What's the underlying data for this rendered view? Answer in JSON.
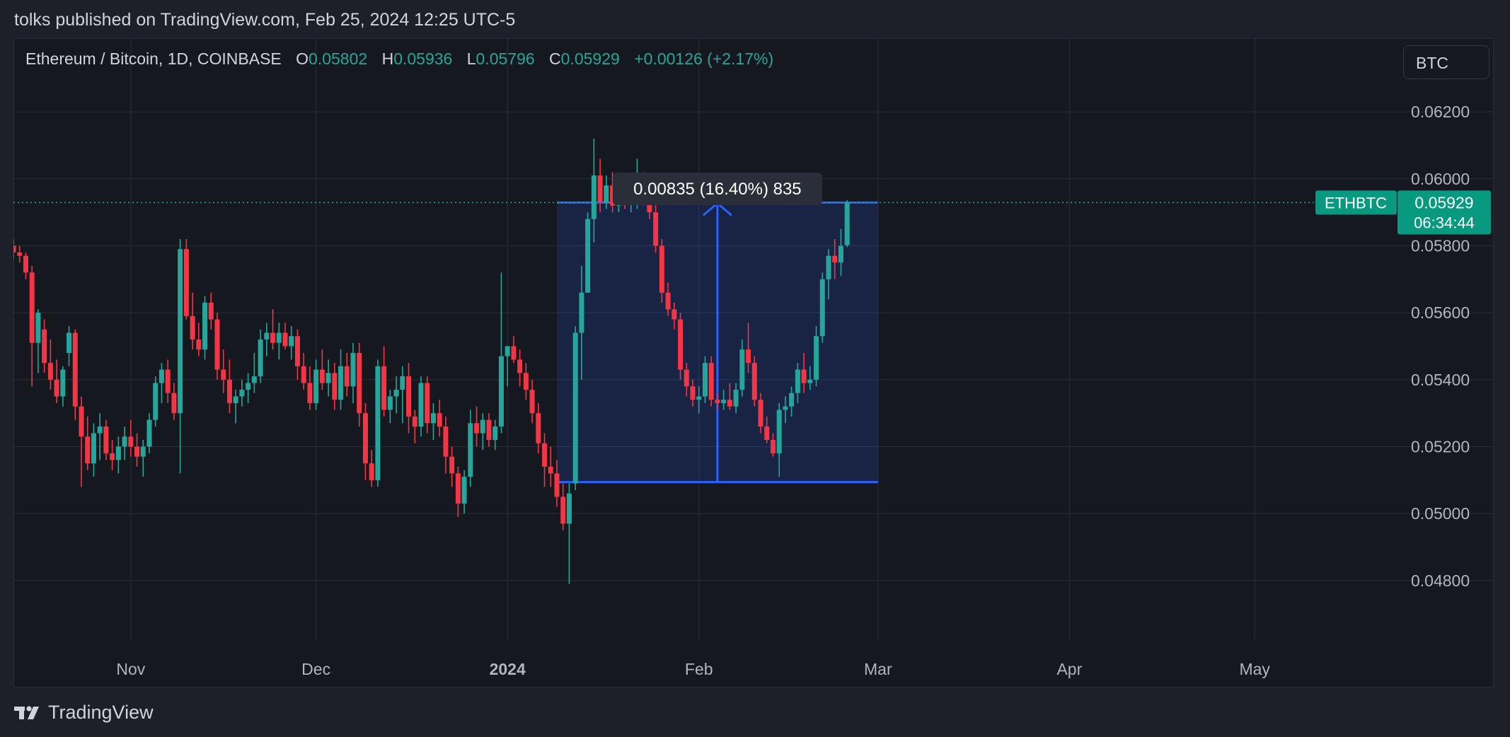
{
  "header": {
    "published_text": "tolks published on TradingView.com, Feb 25, 2024 12:25 UTC-5"
  },
  "legend": {
    "symbol": "Ethereum / Bitcoin, 1D, COINBASE",
    "open_label": "O",
    "open": "0.05802",
    "high_label": "H",
    "high": "0.05936",
    "low_label": "L",
    "low": "0.05796",
    "close_label": "C",
    "close": "0.05929",
    "change": "+0.00126 (+2.17%)"
  },
  "currency_button": {
    "label": "BTC"
  },
  "footer": {
    "brand": "TradingView",
    "logo_icon": "tradingview-logo-icon"
  },
  "colors": {
    "background": "#161820",
    "grid": "#2a2e39",
    "up": "#26a69a",
    "down": "#f23645",
    "measure": "#2962ff",
    "badge": "#089981"
  },
  "chart_data": {
    "type": "candlestick",
    "symbol": "ETHBTC",
    "ylim": [
      0.0462,
      0.0642
    ],
    "x_range": [
      "2023-10-13",
      "2024-05-20"
    ],
    "y_ticks": [
      "0.06200",
      "0.06000",
      "0.05800",
      "0.05600",
      "0.05400",
      "0.05200",
      "0.05000",
      "0.04800"
    ],
    "x_ticks": [
      {
        "date": "2023-11-01",
        "label": "Nov",
        "bold": false
      },
      {
        "date": "2023-12-01",
        "label": "Dec",
        "bold": false
      },
      {
        "date": "2024-01-01",
        "label": "2024",
        "bold": true
      },
      {
        "date": "2024-02-01",
        "label": "Feb",
        "bold": false
      },
      {
        "date": "2024-03-01",
        "label": "Mar",
        "bold": false
      },
      {
        "date": "2024-04-01",
        "label": "Apr",
        "bold": false
      },
      {
        "date": "2024-05-01",
        "label": "May",
        "bold": false
      }
    ],
    "grid": true,
    "last_price": {
      "symbol_label": "ETHBTC",
      "price": "0.05929",
      "countdown": "06:34:44",
      "value": 0.05929
    },
    "measure": {
      "label": "0.00835 (16.40%) 835",
      "start_date": "2024-01-09",
      "end_date": "2024-03-01",
      "from_price": 0.05094,
      "to_price": 0.05929
    },
    "candles": [
      {
        "d": "2023-10-13",
        "o": 0.058,
        "h": 0.0582,
        "l": 0.0576,
        "c": 0.0578
      },
      {
        "d": "2023-10-14",
        "o": 0.0578,
        "h": 0.058,
        "l": 0.0575,
        "c": 0.0577
      },
      {
        "d": "2023-10-15",
        "o": 0.0577,
        "h": 0.0578,
        "l": 0.057,
        "c": 0.0572
      },
      {
        "d": "2023-10-16",
        "o": 0.0572,
        "h": 0.0574,
        "l": 0.0538,
        "c": 0.0551
      },
      {
        "d": "2023-10-17",
        "o": 0.0551,
        "h": 0.0561,
        "l": 0.0542,
        "c": 0.056
      },
      {
        "d": "2023-10-18",
        "o": 0.0555,
        "h": 0.0558,
        "l": 0.0542,
        "c": 0.0545
      },
      {
        "d": "2023-10-19",
        "o": 0.0545,
        "h": 0.0552,
        "l": 0.0537,
        "c": 0.054
      },
      {
        "d": "2023-10-20",
        "o": 0.054,
        "h": 0.0546,
        "l": 0.0533,
        "c": 0.0535
      },
      {
        "d": "2023-10-21",
        "o": 0.0535,
        "h": 0.0544,
        "l": 0.0532,
        "c": 0.0543
      },
      {
        "d": "2023-10-22",
        "o": 0.0548,
        "h": 0.0556,
        "l": 0.0544,
        "c": 0.0554
      },
      {
        "d": "2023-10-23",
        "o": 0.0554,
        "h": 0.0555,
        "l": 0.0528,
        "c": 0.0532
      },
      {
        "d": "2023-10-24",
        "o": 0.0532,
        "h": 0.0535,
        "l": 0.0508,
        "c": 0.0523
      },
      {
        "d": "2023-10-25",
        "o": 0.0523,
        "h": 0.0529,
        "l": 0.0513,
        "c": 0.0515
      },
      {
        "d": "2023-10-26",
        "o": 0.0515,
        "h": 0.0527,
        "l": 0.0511,
        "c": 0.0524
      },
      {
        "d": "2023-10-27",
        "o": 0.0524,
        "h": 0.053,
        "l": 0.0516,
        "c": 0.0526
      },
      {
        "d": "2023-10-28",
        "o": 0.0526,
        "h": 0.0528,
        "l": 0.0516,
        "c": 0.0518
      },
      {
        "d": "2023-10-29",
        "o": 0.0518,
        "h": 0.0522,
        "l": 0.0513,
        "c": 0.0516
      },
      {
        "d": "2023-10-30",
        "o": 0.0516,
        "h": 0.0523,
        "l": 0.0512,
        "c": 0.052
      },
      {
        "d": "2023-10-31",
        "o": 0.052,
        "h": 0.0526,
        "l": 0.0516,
        "c": 0.0523
      },
      {
        "d": "2023-11-01",
        "o": 0.0523,
        "h": 0.0528,
        "l": 0.0517,
        "c": 0.052
      },
      {
        "d": "2023-11-02",
        "o": 0.052,
        "h": 0.0524,
        "l": 0.0514,
        "c": 0.0517
      },
      {
        "d": "2023-11-03",
        "o": 0.0517,
        "h": 0.0522,
        "l": 0.0511,
        "c": 0.052
      },
      {
        "d": "2023-11-04",
        "o": 0.052,
        "h": 0.053,
        "l": 0.0518,
        "c": 0.0528
      },
      {
        "d": "2023-11-05",
        "o": 0.0528,
        "h": 0.0541,
        "l": 0.0526,
        "c": 0.0539
      },
      {
        "d": "2023-11-06",
        "o": 0.0539,
        "h": 0.0545,
        "l": 0.0533,
        "c": 0.0543
      },
      {
        "d": "2023-11-07",
        "o": 0.0543,
        "h": 0.0546,
        "l": 0.0533,
        "c": 0.0536
      },
      {
        "d": "2023-11-08",
        "o": 0.0536,
        "h": 0.0539,
        "l": 0.0528,
        "c": 0.053
      },
      {
        "d": "2023-11-09",
        "o": 0.053,
        "h": 0.0582,
        "l": 0.0512,
        "c": 0.0579
      },
      {
        "d": "2023-11-10",
        "o": 0.0579,
        "h": 0.0582,
        "l": 0.0558,
        "c": 0.0559
      },
      {
        "d": "2023-11-11",
        "o": 0.0559,
        "h": 0.0566,
        "l": 0.0549,
        "c": 0.0552
      },
      {
        "d": "2023-11-12",
        "o": 0.0552,
        "h": 0.0557,
        "l": 0.0547,
        "c": 0.0549
      },
      {
        "d": "2023-11-13",
        "o": 0.0549,
        "h": 0.0565,
        "l": 0.0546,
        "c": 0.0563
      },
      {
        "d": "2023-11-14",
        "o": 0.0563,
        "h": 0.0566,
        "l": 0.0555,
        "c": 0.0558
      },
      {
        "d": "2023-11-15",
        "o": 0.0558,
        "h": 0.056,
        "l": 0.054,
        "c": 0.0543
      },
      {
        "d": "2023-11-16",
        "o": 0.0543,
        "h": 0.0549,
        "l": 0.0536,
        "c": 0.054
      },
      {
        "d": "2023-11-17",
        "o": 0.054,
        "h": 0.0546,
        "l": 0.053,
        "c": 0.0533
      },
      {
        "d": "2023-11-18",
        "o": 0.0533,
        "h": 0.0537,
        "l": 0.0527,
        "c": 0.0535
      },
      {
        "d": "2023-11-19",
        "o": 0.0535,
        "h": 0.054,
        "l": 0.0532,
        "c": 0.0537
      },
      {
        "d": "2023-11-20",
        "o": 0.0537,
        "h": 0.0542,
        "l": 0.0533,
        "c": 0.0539
      },
      {
        "d": "2023-11-21",
        "o": 0.0539,
        "h": 0.0548,
        "l": 0.0536,
        "c": 0.0541
      },
      {
        "d": "2023-11-22",
        "o": 0.0541,
        "h": 0.0555,
        "l": 0.0539,
        "c": 0.0552
      },
      {
        "d": "2023-11-23",
        "o": 0.0552,
        "h": 0.0557,
        "l": 0.0547,
        "c": 0.0554
      },
      {
        "d": "2023-11-24",
        "o": 0.0554,
        "h": 0.0561,
        "l": 0.0549,
        "c": 0.0551
      },
      {
        "d": "2023-11-25",
        "o": 0.0551,
        "h": 0.0557,
        "l": 0.0546,
        "c": 0.0554
      },
      {
        "d": "2023-11-26",
        "o": 0.0554,
        "h": 0.0557,
        "l": 0.0549,
        "c": 0.055
      },
      {
        "d": "2023-11-27",
        "o": 0.055,
        "h": 0.0556,
        "l": 0.0546,
        "c": 0.0553
      },
      {
        "d": "2023-11-28",
        "o": 0.0553,
        "h": 0.0555,
        "l": 0.054,
        "c": 0.0544
      },
      {
        "d": "2023-11-29",
        "o": 0.0544,
        "h": 0.0548,
        "l": 0.0537,
        "c": 0.0539
      },
      {
        "d": "2023-11-30",
        "o": 0.0539,
        "h": 0.0544,
        "l": 0.0531,
        "c": 0.0533
      },
      {
        "d": "2023-12-01",
        "o": 0.0533,
        "h": 0.0546,
        "l": 0.0531,
        "c": 0.0543
      },
      {
        "d": "2023-12-02",
        "o": 0.0543,
        "h": 0.0549,
        "l": 0.0537,
        "c": 0.0539
      },
      {
        "d": "2023-12-03",
        "o": 0.0539,
        "h": 0.0546,
        "l": 0.0535,
        "c": 0.0542
      },
      {
        "d": "2023-12-04",
        "o": 0.0542,
        "h": 0.0545,
        "l": 0.0531,
        "c": 0.0534
      },
      {
        "d": "2023-12-05",
        "o": 0.0534,
        "h": 0.0549,
        "l": 0.0531,
        "c": 0.0544
      },
      {
        "d": "2023-12-06",
        "o": 0.0544,
        "h": 0.0548,
        "l": 0.0535,
        "c": 0.0538
      },
      {
        "d": "2023-12-07",
        "o": 0.0538,
        "h": 0.0551,
        "l": 0.0533,
        "c": 0.0548
      },
      {
        "d": "2023-12-08",
        "o": 0.0548,
        "h": 0.0551,
        "l": 0.0526,
        "c": 0.053
      },
      {
        "d": "2023-12-09",
        "o": 0.053,
        "h": 0.0533,
        "l": 0.051,
        "c": 0.0515
      },
      {
        "d": "2023-12-10",
        "o": 0.0515,
        "h": 0.0519,
        "l": 0.0508,
        "c": 0.051
      },
      {
        "d": "2023-12-11",
        "o": 0.051,
        "h": 0.0546,
        "l": 0.0508,
        "c": 0.0544
      },
      {
        "d": "2023-12-12",
        "o": 0.0544,
        "h": 0.055,
        "l": 0.0529,
        "c": 0.0531
      },
      {
        "d": "2023-12-13",
        "o": 0.0531,
        "h": 0.0537,
        "l": 0.0527,
        "c": 0.0535
      },
      {
        "d": "2023-12-14",
        "o": 0.0535,
        "h": 0.0541,
        "l": 0.053,
        "c": 0.0537
      },
      {
        "d": "2023-12-15",
        "o": 0.0537,
        "h": 0.0544,
        "l": 0.0527,
        "c": 0.0541
      },
      {
        "d": "2023-12-16",
        "o": 0.0541,
        "h": 0.0545,
        "l": 0.0524,
        "c": 0.0529
      },
      {
        "d": "2023-12-17",
        "o": 0.0529,
        "h": 0.0531,
        "l": 0.0521,
        "c": 0.0526
      },
      {
        "d": "2023-12-18",
        "o": 0.0526,
        "h": 0.0541,
        "l": 0.0523,
        "c": 0.0539
      },
      {
        "d": "2023-12-19",
        "o": 0.0539,
        "h": 0.0541,
        "l": 0.0524,
        "c": 0.0527
      },
      {
        "d": "2023-12-20",
        "o": 0.0527,
        "h": 0.0533,
        "l": 0.0522,
        "c": 0.053
      },
      {
        "d": "2023-12-21",
        "o": 0.053,
        "h": 0.0534,
        "l": 0.0523,
        "c": 0.0526
      },
      {
        "d": "2023-12-22",
        "o": 0.0526,
        "h": 0.0529,
        "l": 0.0512,
        "c": 0.0517
      },
      {
        "d": "2023-12-23",
        "o": 0.0517,
        "h": 0.052,
        "l": 0.0508,
        "c": 0.0512
      },
      {
        "d": "2023-12-24",
        "o": 0.0512,
        "h": 0.0514,
        "l": 0.0499,
        "c": 0.0503
      },
      {
        "d": "2023-12-25",
        "o": 0.0503,
        "h": 0.0513,
        "l": 0.05,
        "c": 0.0511
      },
      {
        "d": "2023-12-26",
        "o": 0.0511,
        "h": 0.0531,
        "l": 0.0508,
        "c": 0.0527
      },
      {
        "d": "2023-12-27",
        "o": 0.0527,
        "h": 0.0532,
        "l": 0.052,
        "c": 0.0524
      },
      {
        "d": "2023-12-28",
        "o": 0.0524,
        "h": 0.053,
        "l": 0.0519,
        "c": 0.0528
      },
      {
        "d": "2023-12-29",
        "o": 0.0528,
        "h": 0.053,
        "l": 0.052,
        "c": 0.0522
      },
      {
        "d": "2023-12-30",
        "o": 0.0522,
        "h": 0.0528,
        "l": 0.0519,
        "c": 0.0526
      },
      {
        "d": "2023-12-31",
        "o": 0.0526,
        "h": 0.0572,
        "l": 0.0524,
        "c": 0.0547
      },
      {
        "d": "2024-01-01",
        "o": 0.0547,
        "h": 0.055,
        "l": 0.0538,
        "c": 0.055
      },
      {
        "d": "2024-01-02",
        "o": 0.055,
        "h": 0.0553,
        "l": 0.0545,
        "c": 0.0546
      },
      {
        "d": "2024-01-03",
        "o": 0.0546,
        "h": 0.0549,
        "l": 0.0538,
        "c": 0.0542
      },
      {
        "d": "2024-01-04",
        "o": 0.0542,
        "h": 0.0545,
        "l": 0.0534,
        "c": 0.0537
      },
      {
        "d": "2024-01-05",
        "o": 0.0537,
        "h": 0.054,
        "l": 0.0527,
        "c": 0.053
      },
      {
        "d": "2024-01-06",
        "o": 0.053,
        "h": 0.0533,
        "l": 0.0518,
        "c": 0.0521
      },
      {
        "d": "2024-01-07",
        "o": 0.0521,
        "h": 0.0524,
        "l": 0.0508,
        "c": 0.0514
      },
      {
        "d": "2024-01-08",
        "o": 0.0514,
        "h": 0.052,
        "l": 0.0508,
        "c": 0.0512
      },
      {
        "d": "2024-01-09",
        "o": 0.0512,
        "h": 0.0516,
        "l": 0.0502,
        "c": 0.0505
      },
      {
        "d": "2024-01-10",
        "o": 0.0505,
        "h": 0.0509,
        "l": 0.0495,
        "c": 0.0497
      },
      {
        "d": "2024-01-11",
        "o": 0.0497,
        "h": 0.0509,
        "l": 0.0479,
        "c": 0.0506
      },
      {
        "d": "2024-01-12",
        "o": 0.0509,
        "h": 0.0556,
        "l": 0.0507,
        "c": 0.0554
      },
      {
        "d": "2024-01-13",
        "o": 0.0554,
        "h": 0.0574,
        "l": 0.054,
        "c": 0.0566
      },
      {
        "d": "2024-01-14",
        "o": 0.0566,
        "h": 0.059,
        "l": 0.0566,
        "c": 0.0588
      },
      {
        "d": "2024-01-15",
        "o": 0.0588,
        "h": 0.0612,
        "l": 0.0581,
        "c": 0.0601
      },
      {
        "d": "2024-01-16",
        "o": 0.0601,
        "h": 0.0606,
        "l": 0.059,
        "c": 0.0593
      },
      {
        "d": "2024-01-17",
        "o": 0.0593,
        "h": 0.0601,
        "l": 0.0591,
        "c": 0.0598
      },
      {
        "d": "2024-01-18",
        "o": 0.0598,
        "h": 0.0602,
        "l": 0.059,
        "c": 0.0592
      },
      {
        "d": "2024-01-19",
        "o": 0.0592,
        "h": 0.06,
        "l": 0.059,
        "c": 0.0597
      },
      {
        "d": "2024-01-20",
        "o": 0.0597,
        "h": 0.0601,
        "l": 0.0591,
        "c": 0.0593
      },
      {
        "d": "2024-01-21",
        "o": 0.0593,
        "h": 0.06,
        "l": 0.059,
        "c": 0.0594
      },
      {
        "d": "2024-01-22",
        "o": 0.0594,
        "h": 0.0606,
        "l": 0.0591,
        "c": 0.06
      },
      {
        "d": "2024-01-23",
        "o": 0.06,
        "h": 0.0602,
        "l": 0.0592,
        "c": 0.0593
      },
      {
        "d": "2024-01-24",
        "o": 0.0593,
        "h": 0.0596,
        "l": 0.0588,
        "c": 0.059
      },
      {
        "d": "2024-01-25",
        "o": 0.059,
        "h": 0.0593,
        "l": 0.0578,
        "c": 0.058
      },
      {
        "d": "2024-01-26",
        "o": 0.058,
        "h": 0.0582,
        "l": 0.0563,
        "c": 0.0566
      },
      {
        "d": "2024-01-27",
        "o": 0.0566,
        "h": 0.0569,
        "l": 0.0559,
        "c": 0.0561
      },
      {
        "d": "2024-01-28",
        "o": 0.0561,
        "h": 0.0563,
        "l": 0.0555,
        "c": 0.0558
      },
      {
        "d": "2024-01-29",
        "o": 0.0558,
        "h": 0.056,
        "l": 0.054,
        "c": 0.0543
      },
      {
        "d": "2024-01-30",
        "o": 0.0543,
        "h": 0.0545,
        "l": 0.0535,
        "c": 0.0538
      },
      {
        "d": "2024-01-31",
        "o": 0.0538,
        "h": 0.054,
        "l": 0.0532,
        "c": 0.0534
      },
      {
        "d": "2024-02-01",
        "o": 0.0534,
        "h": 0.0538,
        "l": 0.053,
        "c": 0.0535
      },
      {
        "d": "2024-02-02",
        "o": 0.0535,
        "h": 0.0547,
        "l": 0.0533,
        "c": 0.0545
      },
      {
        "d": "2024-02-03",
        "o": 0.0545,
        "h": 0.0547,
        "l": 0.0532,
        "c": 0.0534
      },
      {
        "d": "2024-02-04",
        "o": 0.0534,
        "h": 0.0536,
        "l": 0.0531,
        "c": 0.0533
      },
      {
        "d": "2024-02-05",
        "o": 0.0533,
        "h": 0.0537,
        "l": 0.0531,
        "c": 0.0534
      },
      {
        "d": "2024-02-06",
        "o": 0.0534,
        "h": 0.0539,
        "l": 0.0531,
        "c": 0.0532
      },
      {
        "d": "2024-02-07",
        "o": 0.0532,
        "h": 0.0539,
        "l": 0.053,
        "c": 0.0537
      },
      {
        "d": "2024-02-08",
        "o": 0.0537,
        "h": 0.0552,
        "l": 0.0535,
        "c": 0.0549
      },
      {
        "d": "2024-02-09",
        "o": 0.0549,
        "h": 0.0557,
        "l": 0.0542,
        "c": 0.0545
      },
      {
        "d": "2024-02-10",
        "o": 0.0545,
        "h": 0.0547,
        "l": 0.0532,
        "c": 0.0534
      },
      {
        "d": "2024-02-11",
        "o": 0.0534,
        "h": 0.0536,
        "l": 0.0524,
        "c": 0.0526
      },
      {
        "d": "2024-02-12",
        "o": 0.0526,
        "h": 0.0529,
        "l": 0.0521,
        "c": 0.0522
      },
      {
        "d": "2024-02-13",
        "o": 0.0522,
        "h": 0.0524,
        "l": 0.0517,
        "c": 0.0518
      },
      {
        "d": "2024-02-14",
        "o": 0.0518,
        "h": 0.0533,
        "l": 0.0511,
        "c": 0.0531
      },
      {
        "d": "2024-02-15",
        "o": 0.0531,
        "h": 0.0535,
        "l": 0.0527,
        "c": 0.0532
      },
      {
        "d": "2024-02-16",
        "o": 0.0532,
        "h": 0.0538,
        "l": 0.0529,
        "c": 0.0536
      },
      {
        "d": "2024-02-17",
        "o": 0.0536,
        "h": 0.0545,
        "l": 0.0533,
        "c": 0.0543
      },
      {
        "d": "2024-02-18",
        "o": 0.0543,
        "h": 0.0548,
        "l": 0.0536,
        "c": 0.0539
      },
      {
        "d": "2024-02-19",
        "o": 0.0539,
        "h": 0.0544,
        "l": 0.0537,
        "c": 0.054
      },
      {
        "d": "2024-02-20",
        "o": 0.054,
        "h": 0.0556,
        "l": 0.0538,
        "c": 0.0553
      },
      {
        "d": "2024-02-21",
        "o": 0.0553,
        "h": 0.0572,
        "l": 0.0551,
        "c": 0.057
      },
      {
        "d": "2024-02-22",
        "o": 0.057,
        "h": 0.0579,
        "l": 0.0564,
        "c": 0.0577
      },
      {
        "d": "2024-02-23",
        "o": 0.0577,
        "h": 0.0582,
        "l": 0.057,
        "c": 0.0575
      },
      {
        "d": "2024-02-24",
        "o": 0.0575,
        "h": 0.0585,
        "l": 0.0571,
        "c": 0.058
      },
      {
        "d": "2024-02-25",
        "o": 0.05802,
        "h": 0.05936,
        "l": 0.05796,
        "c": 0.05929
      }
    ]
  }
}
